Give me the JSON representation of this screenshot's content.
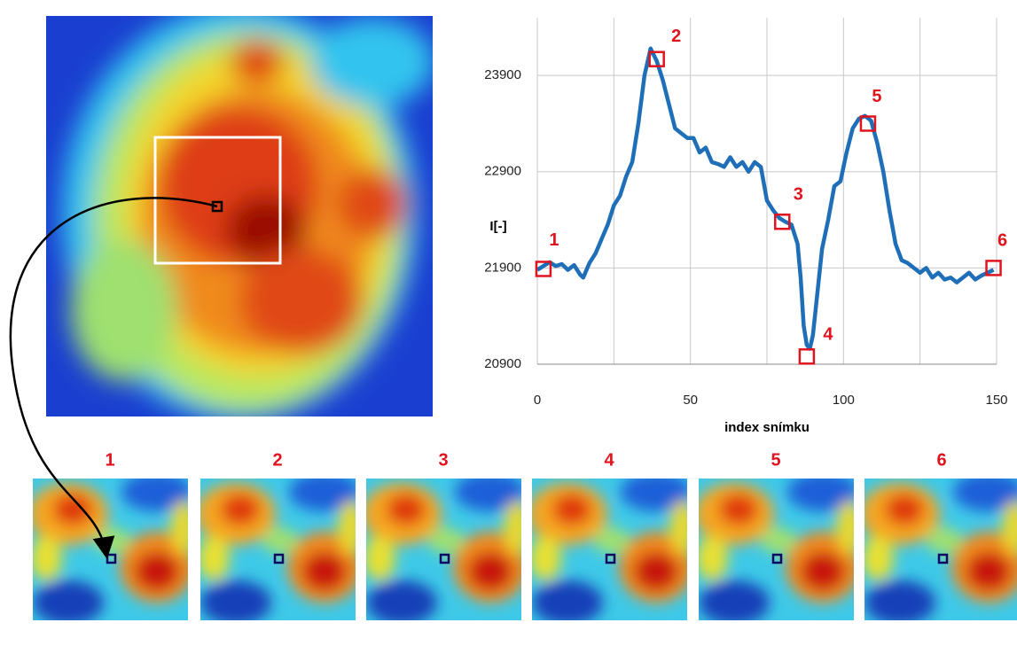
{
  "chart_data": {
    "type": "line",
    "color": "#1f6fb8",
    "grid": true,
    "y_label": "I[-]",
    "x_label": "index snímku",
    "xlim": [
      0,
      150
    ],
    "xticks": [
      0,
      50,
      100,
      150
    ],
    "x_grid": [
      0,
      25,
      50,
      75,
      100,
      125,
      150
    ],
    "ylim": [
      20900,
      24500
    ],
    "yticks": [
      20900,
      21900,
      22900,
      23900
    ],
    "x": [
      0,
      2,
      4,
      6,
      8,
      10,
      12,
      14,
      15,
      17,
      19,
      21,
      23,
      25,
      27,
      29,
      31,
      33,
      35,
      37,
      39,
      41,
      43,
      45,
      47,
      49,
      51,
      53,
      55,
      57,
      59,
      61,
      63,
      65,
      67,
      69,
      71,
      73,
      75,
      77,
      79,
      81,
      83,
      85,
      86,
      87,
      88,
      89,
      90,
      91,
      93,
      95,
      97,
      99,
      101,
      103,
      105,
      107,
      109,
      111,
      113,
      115,
      117,
      119,
      121,
      123,
      125,
      127,
      129,
      131,
      133,
      135,
      137,
      139,
      141,
      143,
      145,
      147,
      149
    ],
    "values": [
      21880,
      21920,
      21960,
      21920,
      21940,
      21880,
      21930,
      21830,
      21800,
      21950,
      22050,
      22200,
      22350,
      22550,
      22650,
      22850,
      23000,
      23400,
      23900,
      24180,
      24050,
      23850,
      23600,
      23350,
      23300,
      23250,
      23250,
      23100,
      23150,
      23000,
      22980,
      22950,
      23050,
      22950,
      23000,
      22900,
      23000,
      22950,
      22600,
      22500,
      22420,
      22380,
      22350,
      22150,
      21800,
      21300,
      21100,
      21060,
      21200,
      21500,
      22100,
      22400,
      22750,
      22800,
      23100,
      23350,
      23450,
      23480,
      23430,
      23200,
      22900,
      22500,
      22150,
      21980,
      21950,
      21900,
      21850,
      21900,
      21800,
      21850,
      21780,
      21800,
      21750,
      21800,
      21850,
      21780,
      21820,
      21850,
      21880
    ],
    "annotations": [
      {
        "label": "1",
        "x": 2,
        "y": 21890
      },
      {
        "label": "2",
        "x": 39,
        "y": 24070
      },
      {
        "label": "3",
        "x": 80,
        "y": 22380
      },
      {
        "label": "4",
        "x": 88,
        "y": 20980
      },
      {
        "label": "5",
        "x": 108,
        "y": 23400
      },
      {
        "label": "6",
        "x": 149,
        "y": 21900
      }
    ]
  },
  "thumbnails": [
    "1",
    "2",
    "3",
    "4",
    "5",
    "6"
  ]
}
